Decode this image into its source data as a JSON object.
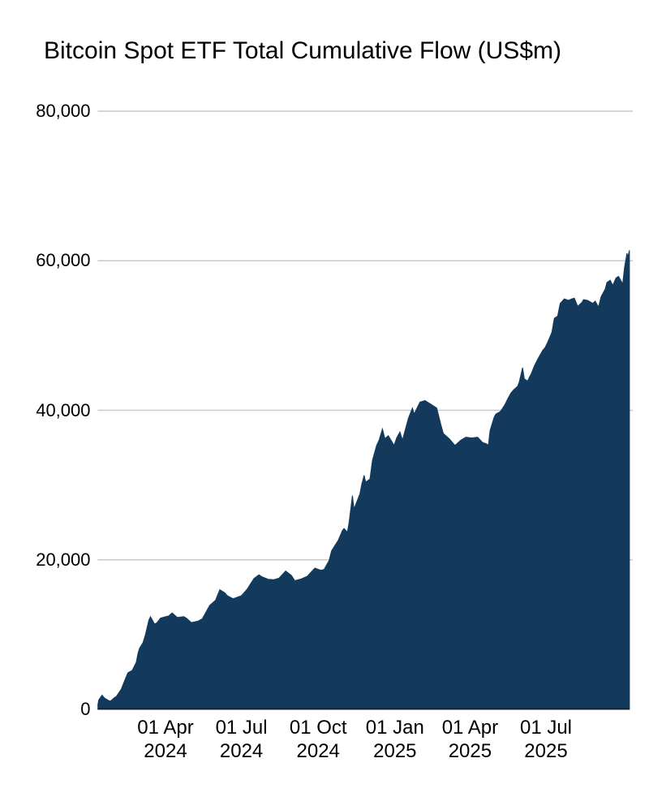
{
  "chart_data": {
    "type": "area",
    "title": "Bitcoin Spot ETF Total Cumulative Flow (US$m)",
    "series_name": "Total cumulative flow",
    "units": "US$m",
    "legend": "none",
    "grid": "horizontal",
    "ylim": [
      0,
      80000
    ],
    "x_range": [
      "2024-01-11",
      "2025-10-09"
    ],
    "colors": {
      "area_fill": "#133A5D",
      "axis_line": "#16212E",
      "gridline": "#C9C9C9",
      "text": "#000000",
      "background": "#FFFFFF"
    },
    "y_ticks": [
      {
        "value": 0,
        "label": "0"
      },
      {
        "value": 20000,
        "label": "20,000"
      },
      {
        "value": 40000,
        "label": "40,000"
      },
      {
        "value": 60000,
        "label": "60,000"
      },
      {
        "value": 80000,
        "label": "80,000"
      }
    ],
    "x_ticks": [
      {
        "date": "2024-04-01",
        "line1": "01 Apr",
        "line2": "2024"
      },
      {
        "date": "2024-07-01",
        "line1": "01 Jul",
        "line2": "2024"
      },
      {
        "date": "2024-10-01",
        "line1": "01 Oct",
        "line2": "2024"
      },
      {
        "date": "2025-01-01",
        "line1": "01 Jan",
        "line2": "2025"
      },
      {
        "date": "2025-04-01",
        "line1": "01 Apr",
        "line2": "2025"
      },
      {
        "date": "2025-07-01",
        "line1": "01 Jul",
        "line2": "2025"
      }
    ],
    "points": [
      [
        "2024-01-11",
        655
      ],
      [
        "2024-01-12",
        1250
      ],
      [
        "2024-01-16",
        1900
      ],
      [
        "2024-01-19",
        1500
      ],
      [
        "2024-01-24",
        1170
      ],
      [
        "2024-01-26",
        1100
      ],
      [
        "2024-01-31",
        1600
      ],
      [
        "2024-02-02",
        1700
      ],
      [
        "2024-02-08",
        2700
      ],
      [
        "2024-02-13",
        4100
      ],
      [
        "2024-02-16",
        4900
      ],
      [
        "2024-02-21",
        5200
      ],
      [
        "2024-02-26",
        6300
      ],
      [
        "2024-02-28",
        7500
      ],
      [
        "2024-03-01",
        8200
      ],
      [
        "2024-03-05",
        8900
      ],
      [
        "2024-03-08",
        10000
      ],
      [
        "2024-03-12",
        11900
      ],
      [
        "2024-03-14",
        12400
      ],
      [
        "2024-03-19",
        11400
      ],
      [
        "2024-03-22",
        11600
      ],
      [
        "2024-03-26",
        12200
      ],
      [
        "2024-04-01",
        12400
      ],
      [
        "2024-04-05",
        12500
      ],
      [
        "2024-04-09",
        12900
      ],
      [
        "2024-04-15",
        12300
      ],
      [
        "2024-04-23",
        12400
      ],
      [
        "2024-04-26",
        12200
      ],
      [
        "2024-05-02",
        11600
      ],
      [
        "2024-05-10",
        11800
      ],
      [
        "2024-05-15",
        12100
      ],
      [
        "2024-05-21",
        13300
      ],
      [
        "2024-05-24",
        13900
      ],
      [
        "2024-05-31",
        14600
      ],
      [
        "2024-06-05",
        16000
      ],
      [
        "2024-06-11",
        15600
      ],
      [
        "2024-06-14",
        15200
      ],
      [
        "2024-06-21",
        14800
      ],
      [
        "2024-06-26",
        15000
      ],
      [
        "2024-07-01",
        15200
      ],
      [
        "2024-07-08",
        16100
      ],
      [
        "2024-07-16",
        17500
      ],
      [
        "2024-07-22",
        18000
      ],
      [
        "2024-07-26",
        17700
      ],
      [
        "2024-08-02",
        17400
      ],
      [
        "2024-08-09",
        17350
      ],
      [
        "2024-08-15",
        17550
      ],
      [
        "2024-08-23",
        18500
      ],
      [
        "2024-08-30",
        17900
      ],
      [
        "2024-09-03",
        17200
      ],
      [
        "2024-09-11",
        17450
      ],
      [
        "2024-09-18",
        17800
      ],
      [
        "2024-09-27",
        18900
      ],
      [
        "2024-10-04",
        18600
      ],
      [
        "2024-10-08",
        18700
      ],
      [
        "2024-10-14",
        19900
      ],
      [
        "2024-10-17",
        21200
      ],
      [
        "2024-10-21",
        21900
      ],
      [
        "2024-10-25",
        22600
      ],
      [
        "2024-10-30",
        23900
      ],
      [
        "2024-11-01",
        24200
      ],
      [
        "2024-11-05",
        23700
      ],
      [
        "2024-11-07",
        25000
      ],
      [
        "2024-11-11",
        28600
      ],
      [
        "2024-11-13",
        26800
      ],
      [
        "2024-11-20",
        28800
      ],
      [
        "2024-11-22",
        30000
      ],
      [
        "2024-11-25",
        31300
      ],
      [
        "2024-11-27",
        30400
      ],
      [
        "2024-12-02",
        30800
      ],
      [
        "2024-12-05",
        33300
      ],
      [
        "2024-12-10",
        35300
      ],
      [
        "2024-12-13",
        36000
      ],
      [
        "2024-12-17",
        37500
      ],
      [
        "2024-12-20",
        36200
      ],
      [
        "2024-12-24",
        36600
      ],
      [
        "2024-12-31",
        35300
      ],
      [
        "2025-01-03",
        36300
      ],
      [
        "2025-01-07",
        37100
      ],
      [
        "2025-01-10",
        36000
      ],
      [
        "2025-01-17",
        38900
      ],
      [
        "2025-01-22",
        40300
      ],
      [
        "2025-01-24",
        39500
      ],
      [
        "2025-01-31",
        41100
      ],
      [
        "2025-02-06",
        41300
      ],
      [
        "2025-02-13",
        40800
      ],
      [
        "2025-02-20",
        40300
      ],
      [
        "2025-02-25",
        38100
      ],
      [
        "2025-02-28",
        36900
      ],
      [
        "2025-03-07",
        36200
      ],
      [
        "2025-03-14",
        35300
      ],
      [
        "2025-03-21",
        36000
      ],
      [
        "2025-03-27",
        36400
      ],
      [
        "2025-04-03",
        36300
      ],
      [
        "2025-04-10",
        36400
      ],
      [
        "2025-04-16",
        35700
      ],
      [
        "2025-04-21",
        35500
      ],
      [
        "2025-04-23",
        35300
      ],
      [
        "2025-04-25",
        37300
      ],
      [
        "2025-04-30",
        39100
      ],
      [
        "2025-05-02",
        39500
      ],
      [
        "2025-05-07",
        39800
      ],
      [
        "2025-05-09",
        40100
      ],
      [
        "2025-05-13",
        40800
      ],
      [
        "2025-05-16",
        41500
      ],
      [
        "2025-05-20",
        42300
      ],
      [
        "2025-05-23",
        42700
      ],
      [
        "2025-05-28",
        43200
      ],
      [
        "2025-05-30",
        43800
      ],
      [
        "2025-06-03",
        45700
      ],
      [
        "2025-06-05",
        44200
      ],
      [
        "2025-06-09",
        43900
      ],
      [
        "2025-06-11",
        44400
      ],
      [
        "2025-06-13",
        44800
      ],
      [
        "2025-06-17",
        45900
      ],
      [
        "2025-06-20",
        46600
      ],
      [
        "2025-06-24",
        47400
      ],
      [
        "2025-06-27",
        48000
      ],
      [
        "2025-06-30",
        48400
      ],
      [
        "2025-07-03",
        49100
      ],
      [
        "2025-07-08",
        50400
      ],
      [
        "2025-07-11",
        52300
      ],
      [
        "2025-07-15",
        52600
      ],
      [
        "2025-07-18",
        54300
      ],
      [
        "2025-07-23",
        54900
      ],
      [
        "2025-07-28",
        54700
      ],
      [
        "2025-08-01",
        54900
      ],
      [
        "2025-08-04",
        55000
      ],
      [
        "2025-08-08",
        53900
      ],
      [
        "2025-08-13",
        54400
      ],
      [
        "2025-08-15",
        54800
      ],
      [
        "2025-08-20",
        54700
      ],
      [
        "2025-08-26",
        54300
      ],
      [
        "2025-08-29",
        54600
      ],
      [
        "2025-09-02",
        53800
      ],
      [
        "2025-09-05",
        55200
      ],
      [
        "2025-09-10",
        56200
      ],
      [
        "2025-09-12",
        57100
      ],
      [
        "2025-09-16",
        57400
      ],
      [
        "2025-09-19",
        56700
      ],
      [
        "2025-09-23",
        57700
      ],
      [
        "2025-09-26",
        57900
      ],
      [
        "2025-09-30",
        57100
      ],
      [
        "2025-10-01",
        56900
      ],
      [
        "2025-10-03",
        59000
      ],
      [
        "2025-10-06",
        61000
      ],
      [
        "2025-10-07",
        60500
      ],
      [
        "2025-10-09",
        61400
      ]
    ]
  }
}
